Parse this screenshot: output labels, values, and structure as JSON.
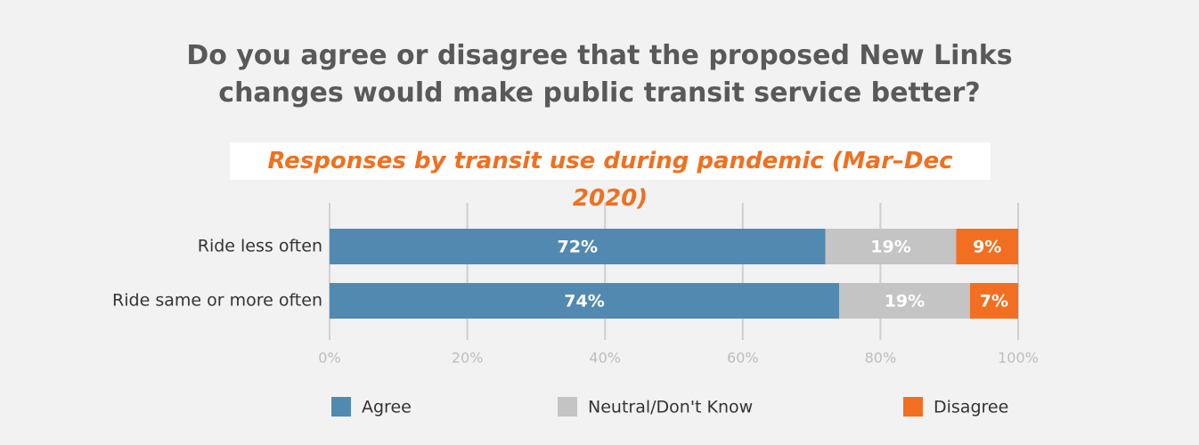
{
  "chart_data": {
    "type": "stacked_bar_horizontal",
    "title": "Do you agree or disagree that the proposed New Links changes would make public transit service better?",
    "subtitle": "Responses by transit use during pandemic (Mar–Dec 2020)",
    "categories": [
      "Ride less often",
      "Ride same or more often"
    ],
    "series": [
      {
        "name": "Agree",
        "color": "#5289b0",
        "values": [
          72,
          74
        ],
        "value_labels": [
          "72%",
          "74%"
        ]
      },
      {
        "name": "Neutral/Don't Know",
        "color": "#c4c4c4",
        "values": [
          19,
          19
        ],
        "value_labels": [
          "19%",
          "19%"
        ]
      },
      {
        "name": "Disagree",
        "color": "#f26f21",
        "values": [
          9,
          7
        ],
        "value_labels": [
          "9%",
          "7%"
        ]
      }
    ],
    "xlim": [
      0,
      100
    ],
    "xticks": [
      {
        "value": 0,
        "label": "0%"
      },
      {
        "value": 20,
        "label": "20%"
      },
      {
        "value": 40,
        "label": "40%"
      },
      {
        "value": 60,
        "label": "60%"
      },
      {
        "value": 80,
        "label": "80%"
      },
      {
        "value": 100,
        "label": "100%"
      }
    ],
    "grid": true,
    "legend": "bottom"
  }
}
